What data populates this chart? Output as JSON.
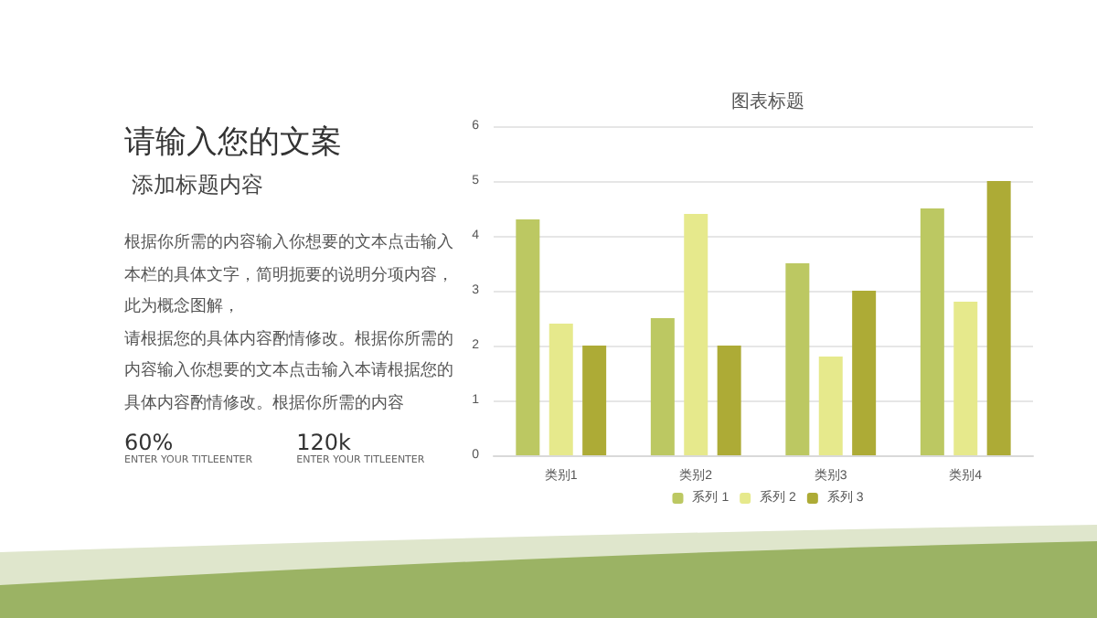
{
  "chart_data": [
    {
      "type": "other",
      "title": "请输入您的文案",
      "subtitle": "添加标题内容",
      "annotations": [
        "根据你所需的内容输入你想要的文本点击输入本栏的具体文字，简明扼要的说明分项内容，此为概念图解，",
        "请根据您的具体内容酌情修改。根据你所需的内容输入你想要的文本点击输入本请根据您的具体内容酌情修改。根据你所需的内容",
        "60%",
        "ENTER YOUR TITLEENTER",
        "120k",
        "ENTER YOUR TITLEENTER"
      ]
    },
    {
      "type": "bar",
      "title": "图表标题",
      "categories": [
        "类别1",
        "类别2",
        "类别3",
        "类别4"
      ],
      "series": [
        {
          "name": "系列 1",
          "color": "#bcc862",
          "values": [
            4.3,
            2.5,
            3.5,
            4.5
          ]
        },
        {
          "name": "系列 2",
          "color": "#e6e98c",
          "values": [
            2.4,
            4.4,
            1.8,
            2.8
          ]
        },
        {
          "name": "系列 3",
          "color": "#adab36",
          "values": [
            2,
            2,
            3,
            5
          ]
        }
      ],
      "ylim": [
        0,
        6
      ],
      "yticks": [
        0,
        1,
        2,
        3,
        4,
        5,
        6
      ],
      "grid": "y",
      "legend": "bottom"
    }
  ]
}
